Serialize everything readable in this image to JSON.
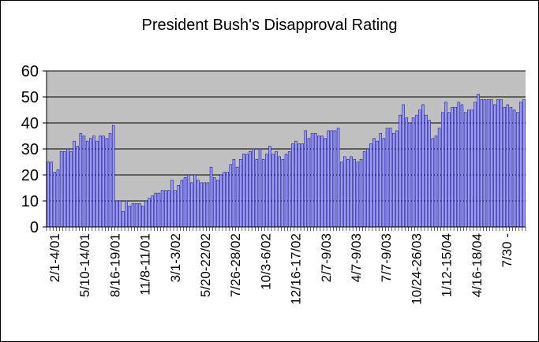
{
  "chart_data": {
    "type": "bar",
    "title": "President Bush's Disapproval Rating",
    "xlabel": "",
    "ylabel": "",
    "ylim": [
      0,
      60
    ],
    "yticks": [
      0,
      10,
      20,
      30,
      40,
      50,
      60
    ],
    "grid": true,
    "legend": "none",
    "colors": {
      "plot_background": "#c0c0c0",
      "bar_fill": "#9999ff",
      "bar_stroke": "#000080",
      "gridline": "#000000"
    },
    "x_tick_labels": [
      "2/1-4/01",
      "5/10-14/01",
      "8/16-19/01",
      "11/8-11/01",
      "3/1-3/02",
      "5/20-22/02",
      "7/26-28/02",
      "10/3-6/02",
      "12/16-17/02",
      "2/7-9/03",
      "4/7-9/03",
      "7/7-9/03",
      "10/24-26/03",
      "1/12-15/04",
      "4/16-18/04",
      "7/30 -"
    ],
    "values": [
      25,
      25,
      21,
      22,
      29,
      29,
      30,
      29,
      33,
      31,
      36,
      35,
      33,
      34,
      35,
      33,
      35,
      35,
      34,
      36,
      39,
      10,
      10,
      6,
      10,
      8,
      9,
      9,
      9,
      8,
      10,
      11,
      12,
      13,
      13,
      14,
      14,
      14,
      18,
      14,
      16,
      18,
      19,
      20,
      17,
      20,
      18,
      17,
      17,
      17,
      23,
      19,
      18,
      20,
      21,
      21,
      24,
      26,
      23,
      26,
      28,
      28,
      29,
      30,
      26,
      30,
      26,
      28,
      31,
      28,
      29,
      27,
      26,
      28,
      29,
      32,
      33,
      32,
      32,
      37,
      34,
      36,
      36,
      35,
      35,
      34,
      37,
      37,
      37,
      38,
      25,
      27,
      26,
      27,
      26,
      25,
      26,
      29,
      30,
      32,
      34,
      33,
      36,
      34,
      38,
      38,
      36,
      37,
      43,
      47,
      42,
      40,
      42,
      43,
      45,
      47,
      43,
      41,
      34,
      35,
      38,
      44,
      48,
      44,
      46,
      46,
      48,
      47,
      44,
      45,
      45,
      48,
      51,
      49,
      49,
      49,
      49,
      47,
      49,
      49,
      46,
      47,
      46,
      45,
      44,
      48,
      49
    ]
  }
}
